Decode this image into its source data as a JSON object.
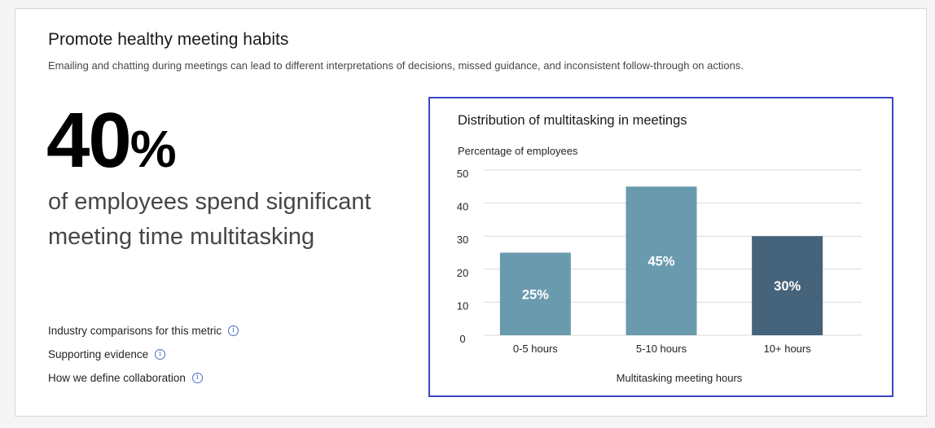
{
  "header": {
    "title": "Promote healthy meeting habits",
    "subtitle": "Emailing and chatting during meetings can lead to different interpretations of decisions, missed guidance, and inconsistent follow-through on actions."
  },
  "stat": {
    "value": "40",
    "unit": "%",
    "description": "of employees spend significant meeting time multitasking"
  },
  "links": [
    {
      "label": "Industry comparisons for this metric",
      "icon": "info-icon"
    },
    {
      "label": "Supporting evidence",
      "icon": "info-icon"
    },
    {
      "label": "How we define collaboration",
      "icon": "info-icon"
    }
  ],
  "chart_data": {
    "type": "bar",
    "title": "Distribution of multitasking in meetings",
    "ylabel": "Percentage of employees",
    "xlabel": "Multitasking meeting hours",
    "categories": [
      "0-5 hours",
      "5-10 hours",
      "10+ hours"
    ],
    "values": [
      25,
      45,
      30
    ],
    "data_labels": [
      "25%",
      "45%",
      "30%"
    ],
    "ylim": [
      0,
      50
    ],
    "yticks": [
      0,
      10,
      20,
      30,
      40,
      50
    ],
    "grid": true,
    "colors": [
      "#6a9aad",
      "#6a9aad",
      "#45637a"
    ]
  }
}
